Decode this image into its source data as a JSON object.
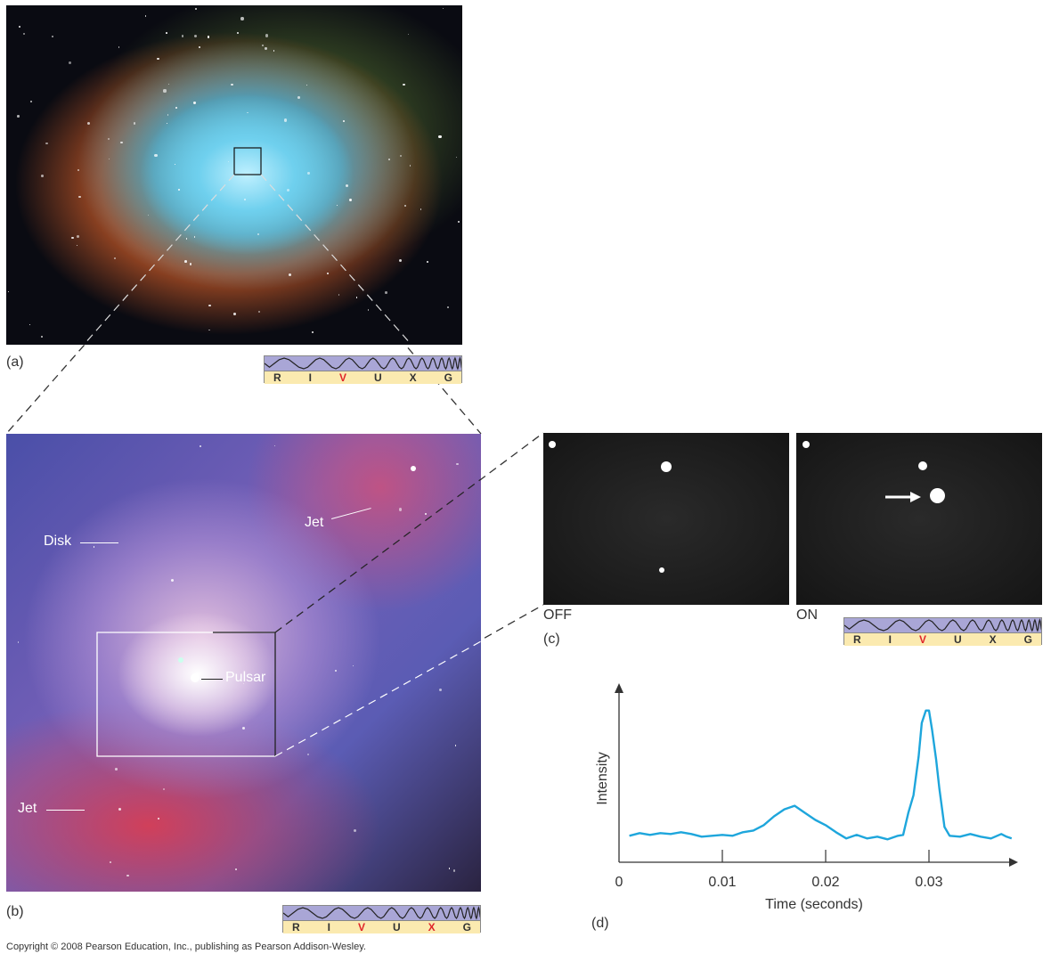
{
  "panels": {
    "a": {
      "label": "(a)",
      "spectrum": {
        "letters": [
          "R",
          "I",
          "V",
          "U",
          "X",
          "G"
        ],
        "highlighted": [
          "V"
        ]
      }
    },
    "b": {
      "label": "(b)",
      "callouts": {
        "disk": "Disk",
        "jet_upper": "Jet",
        "pulsar": "Pulsar",
        "jet_lower": "Jet"
      },
      "spectrum": {
        "letters": [
          "R",
          "I",
          "V",
          "U",
          "X",
          "G"
        ],
        "highlighted": [
          "V",
          "X"
        ]
      }
    },
    "c": {
      "label": "(c)",
      "off_label": "OFF",
      "on_label": "ON",
      "spectrum": {
        "letters": [
          "R",
          "I",
          "V",
          "U",
          "X",
          "G"
        ],
        "highlighted": [
          "V"
        ]
      }
    },
    "d": {
      "label": "(d)"
    }
  },
  "colors": {
    "curve": "#1ea6dc",
    "highlight_letter": "#e0262a",
    "spectrum_wave_bg": "#a9a6d6",
    "spectrum_letter_bg": "#fbeab0"
  },
  "chart_data": {
    "type": "line",
    "xlabel": "Time (seconds)",
    "ylabel": "Intensity",
    "xticks": [
      "0",
      "0.01",
      "0.02",
      "0.03"
    ],
    "xtick_values": [
      0,
      0.01,
      0.02,
      0.03
    ],
    "xlim": [
      0,
      0.038
    ],
    "ylim": [
      0,
      10
    ],
    "y_units": "arbitrary",
    "grid": false,
    "series": [
      {
        "x": [
          0.001,
          0.002,
          0.003,
          0.004,
          0.005,
          0.006,
          0.007,
          0.008,
          0.009,
          0.01,
          0.011,
          0.012,
          0.013,
          0.014,
          0.015,
          0.016,
          0.017,
          0.018,
          0.019,
          0.02,
          0.021,
          0.022,
          0.023,
          0.024,
          0.025,
          0.026,
          0.027,
          0.0275,
          0.028,
          0.0285,
          0.029,
          0.0293,
          0.0297,
          0.03,
          0.0303,
          0.0307,
          0.031,
          0.0315,
          0.032,
          0.033,
          0.034,
          0.035,
          0.036,
          0.037,
          0.0375,
          0.038
        ],
        "y": [
          1.5,
          1.65,
          1.55,
          1.65,
          1.6,
          1.7,
          1.6,
          1.45,
          1.5,
          1.55,
          1.5,
          1.7,
          1.8,
          2.1,
          2.6,
          3.0,
          3.2,
          2.8,
          2.4,
          2.1,
          1.7,
          1.35,
          1.55,
          1.35,
          1.45,
          1.3,
          1.5,
          1.55,
          2.8,
          3.8,
          6.0,
          7.9,
          8.6,
          8.6,
          7.5,
          5.8,
          4.2,
          2.0,
          1.5,
          1.45,
          1.6,
          1.45,
          1.35,
          1.6,
          1.45,
          1.35
        ]
      }
    ]
  },
  "copyright": "Copyright © 2008 Pearson Education, Inc., publishing as Pearson Addison-Wesley."
}
